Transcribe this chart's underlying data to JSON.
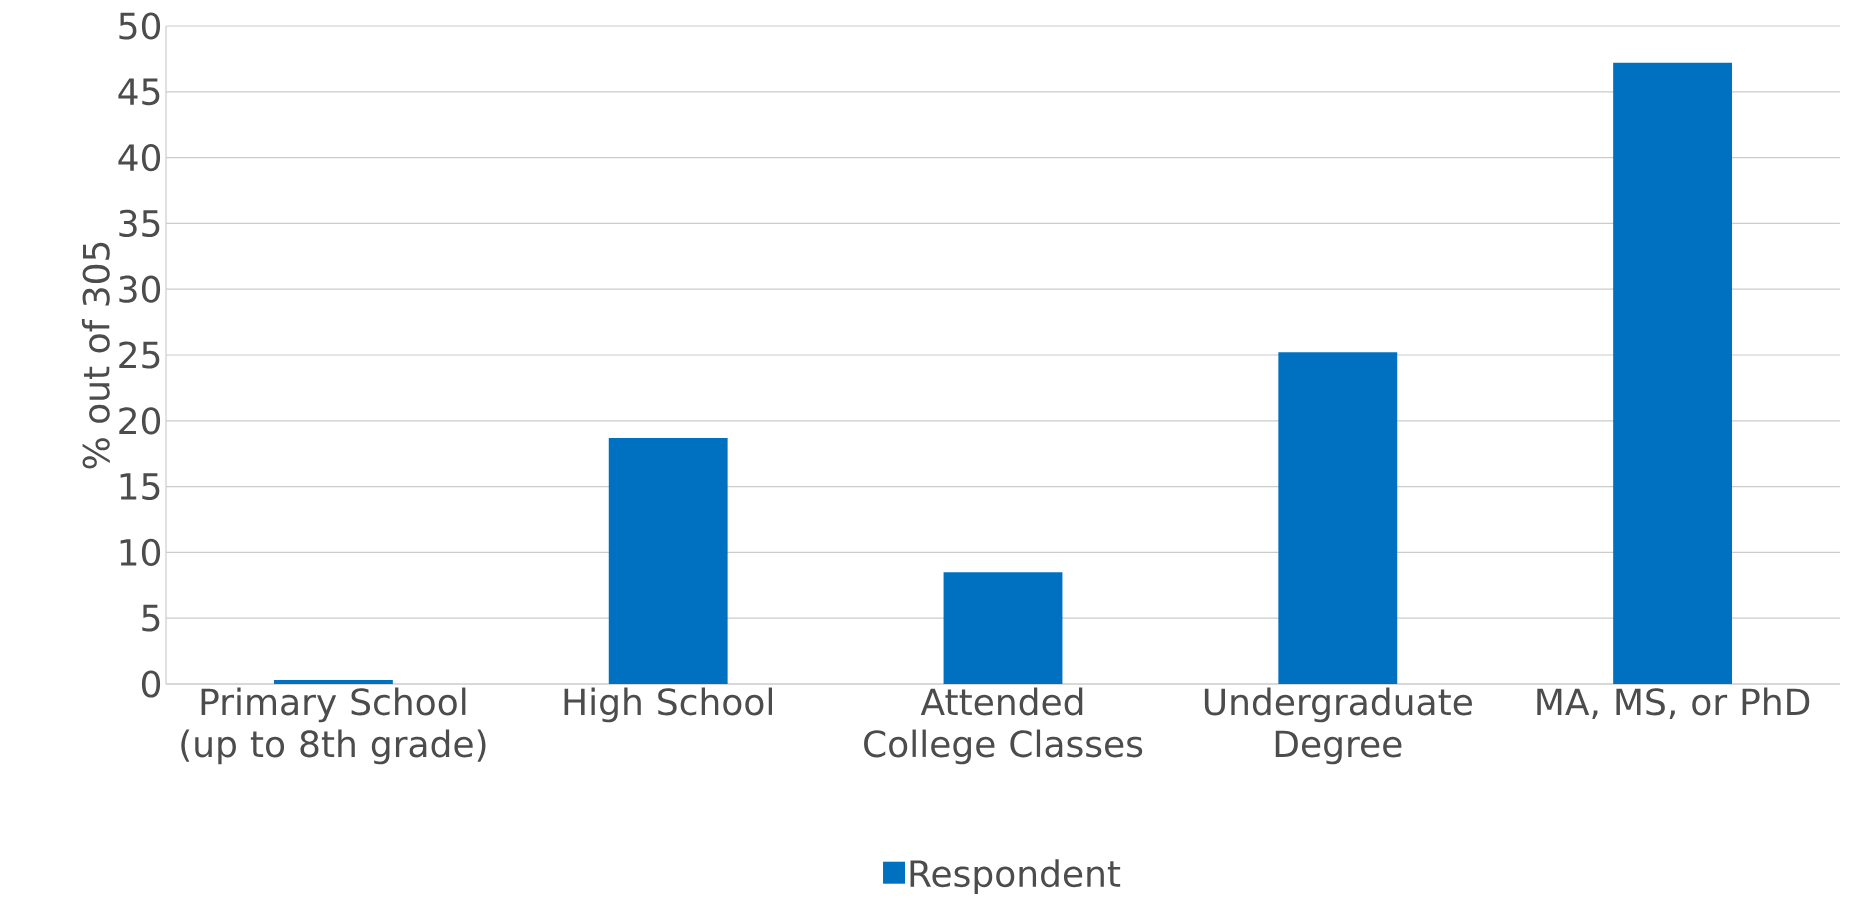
{
  "chart_data": {
    "type": "bar",
    "ylabel": "% out of 305",
    "categories": [
      "Primary School (up to 8th grade)",
      "High School",
      "Attended College Classes",
      "Undergraduate Degree",
      "MA, MS, or PhD"
    ],
    "series": [
      {
        "name": "Respondent",
        "color": "#0070c0",
        "values": [
          0.3,
          18.7,
          8.5,
          25.2,
          47.2
        ]
      }
    ],
    "ylim": [
      0,
      50
    ],
    "yticks": [
      0,
      5,
      10,
      15,
      20,
      25,
      30,
      35,
      40,
      45,
      50
    ],
    "grid": "y",
    "legend": "bottom"
  }
}
